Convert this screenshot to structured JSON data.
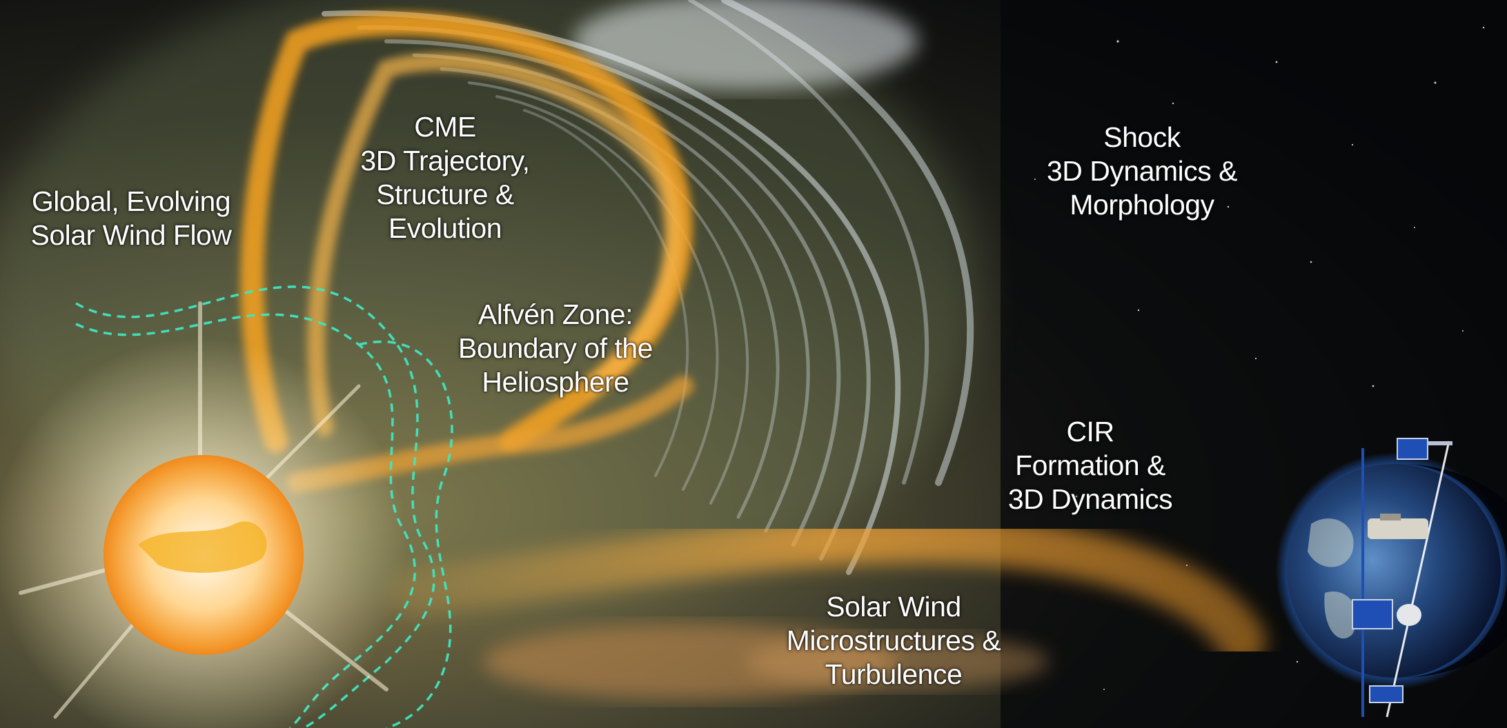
{
  "labels": {
    "global_wind": [
      "Global, Evolving",
      "Solar Wind Flow"
    ],
    "cme": [
      "CME",
      "3D Trajectory,",
      "Structure &",
      "Evolution"
    ],
    "alfven": [
      "Alfvén Zone:",
      "Boundary of the",
      "Heliosphere"
    ],
    "shock": [
      "Shock",
      "3D Dynamics &",
      "Morphology"
    ],
    "cir": [
      "CIR",
      "Formation &",
      "3D Dynamics"
    ],
    "microstructures": [
      "Solar Wind",
      "Microstructures &",
      "Turbulence"
    ]
  },
  "colors": {
    "space_background": "#050608",
    "sun_core": "#fff6e0",
    "sun_edge": "#f4a232",
    "cme_flux": "#f7a21f",
    "shock_fronts": "#d8e2e6",
    "alfven_boundary": "#3fe6c0",
    "earth_ocean": "#1d3f7a",
    "earth_glow": "#2f7dff",
    "spacecraft_panel": "#1f4fb5"
  },
  "icons": [
    "sun",
    "earth",
    "spacecraft"
  ]
}
